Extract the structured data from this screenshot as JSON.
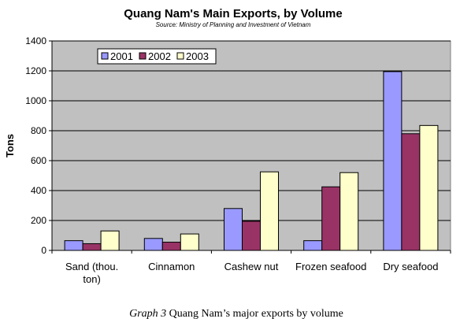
{
  "chart_data": {
    "type": "bar",
    "title": "Quang Nam's Main Exports, by Volume",
    "subtitle": "Source: Ministry of Planning and Investment of Vietnam",
    "ylabel": "Tons",
    "xlabel": "",
    "ylim": [
      0,
      1400
    ],
    "yticks": [
      0,
      200,
      400,
      600,
      800,
      1000,
      1200,
      1400
    ],
    "grid": true,
    "legend_position": "top-left",
    "categories": [
      [
        "Sand (thou.",
        "ton)"
      ],
      [
        "Cinnamon"
      ],
      [
        "Cashew nut"
      ],
      [
        "Frozen seafood"
      ],
      [
        "Dry seafood"
      ]
    ],
    "series": [
      {
        "name": "2001",
        "color": "#9999FF",
        "values": [
          65,
          80,
          280,
          65,
          1195
        ]
      },
      {
        "name": "2002",
        "color": "#993366",
        "values": [
          45,
          55,
          195,
          425,
          780
        ]
      },
      {
        "name": "2003",
        "color": "#FFFFCC",
        "values": [
          130,
          110,
          525,
          520,
          835
        ]
      }
    ],
    "colors": {
      "plot_background": "#C0C0C0",
      "gridline": "#000000",
      "bar_outline": "#000000"
    }
  },
  "caption": {
    "label": "Graph 3",
    "text": " Quang Nam’s major exports by volume"
  }
}
